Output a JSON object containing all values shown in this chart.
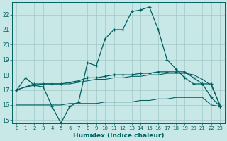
{
  "xlabel": "Humidex (Indice chaleur)",
  "xlim": [
    -0.5,
    23.5
  ],
  "ylim": [
    14.8,
    22.8
  ],
  "background_color": "#c8e8e8",
  "grid_color": "#a0c8c8",
  "line_color": "#006060",
  "line1_x": [
    0,
    1,
    2,
    3,
    4,
    5,
    6,
    7,
    8,
    9,
    10,
    11,
    12,
    13,
    14,
    15,
    16,
    17,
    18,
    19,
    20,
    21,
    22,
    23
  ],
  "line1_y": [
    17.0,
    17.8,
    17.3,
    17.2,
    15.9,
    14.8,
    15.9,
    16.2,
    18.8,
    18.6,
    20.4,
    21.0,
    21.0,
    22.2,
    22.3,
    22.5,
    21.0,
    19.0,
    18.4,
    17.8,
    17.4,
    17.4,
    16.5,
    15.9
  ],
  "line2_x": [
    0,
    1,
    2,
    3,
    4,
    5,
    6,
    7,
    8,
    9,
    10,
    11,
    12,
    13,
    14,
    15,
    16,
    17,
    18,
    19,
    20,
    21,
    22,
    23
  ],
  "line2_y": [
    17.0,
    17.2,
    17.4,
    17.4,
    17.4,
    17.4,
    17.5,
    17.6,
    17.8,
    17.8,
    17.9,
    18.0,
    18.0,
    18.0,
    18.1,
    18.1,
    18.2,
    18.2,
    18.2,
    18.2,
    17.8,
    17.4,
    17.4,
    15.9
  ],
  "line3_x": [
    0,
    1,
    2,
    3,
    4,
    5,
    6,
    7,
    8,
    9,
    10,
    11,
    12,
    13,
    14,
    15,
    16,
    17,
    18,
    19,
    20,
    21,
    22,
    23
  ],
  "line3_y": [
    17.0,
    17.2,
    17.3,
    17.4,
    17.4,
    17.4,
    17.4,
    17.5,
    17.6,
    17.7,
    17.7,
    17.8,
    17.8,
    17.9,
    17.9,
    18.0,
    18.0,
    18.1,
    18.1,
    18.1,
    18.0,
    17.7,
    17.3,
    16.0
  ],
  "line4_x": [
    0,
    1,
    2,
    3,
    4,
    5,
    6,
    7,
    8,
    9,
    10,
    11,
    12,
    13,
    14,
    15,
    16,
    17,
    18,
    19,
    20,
    21,
    22,
    23
  ],
  "line4_y": [
    16.0,
    16.0,
    16.0,
    16.0,
    16.0,
    16.0,
    16.1,
    16.1,
    16.1,
    16.1,
    16.2,
    16.2,
    16.2,
    16.2,
    16.3,
    16.3,
    16.4,
    16.4,
    16.5,
    16.5,
    16.5,
    16.5,
    16.0,
    15.9
  ],
  "yticks": [
    15,
    16,
    17,
    18,
    19,
    20,
    21,
    22
  ],
  "xticks": [
    0,
    1,
    2,
    3,
    4,
    5,
    6,
    7,
    8,
    9,
    10,
    11,
    12,
    13,
    14,
    15,
    16,
    17,
    18,
    19,
    20,
    21,
    22,
    23
  ]
}
